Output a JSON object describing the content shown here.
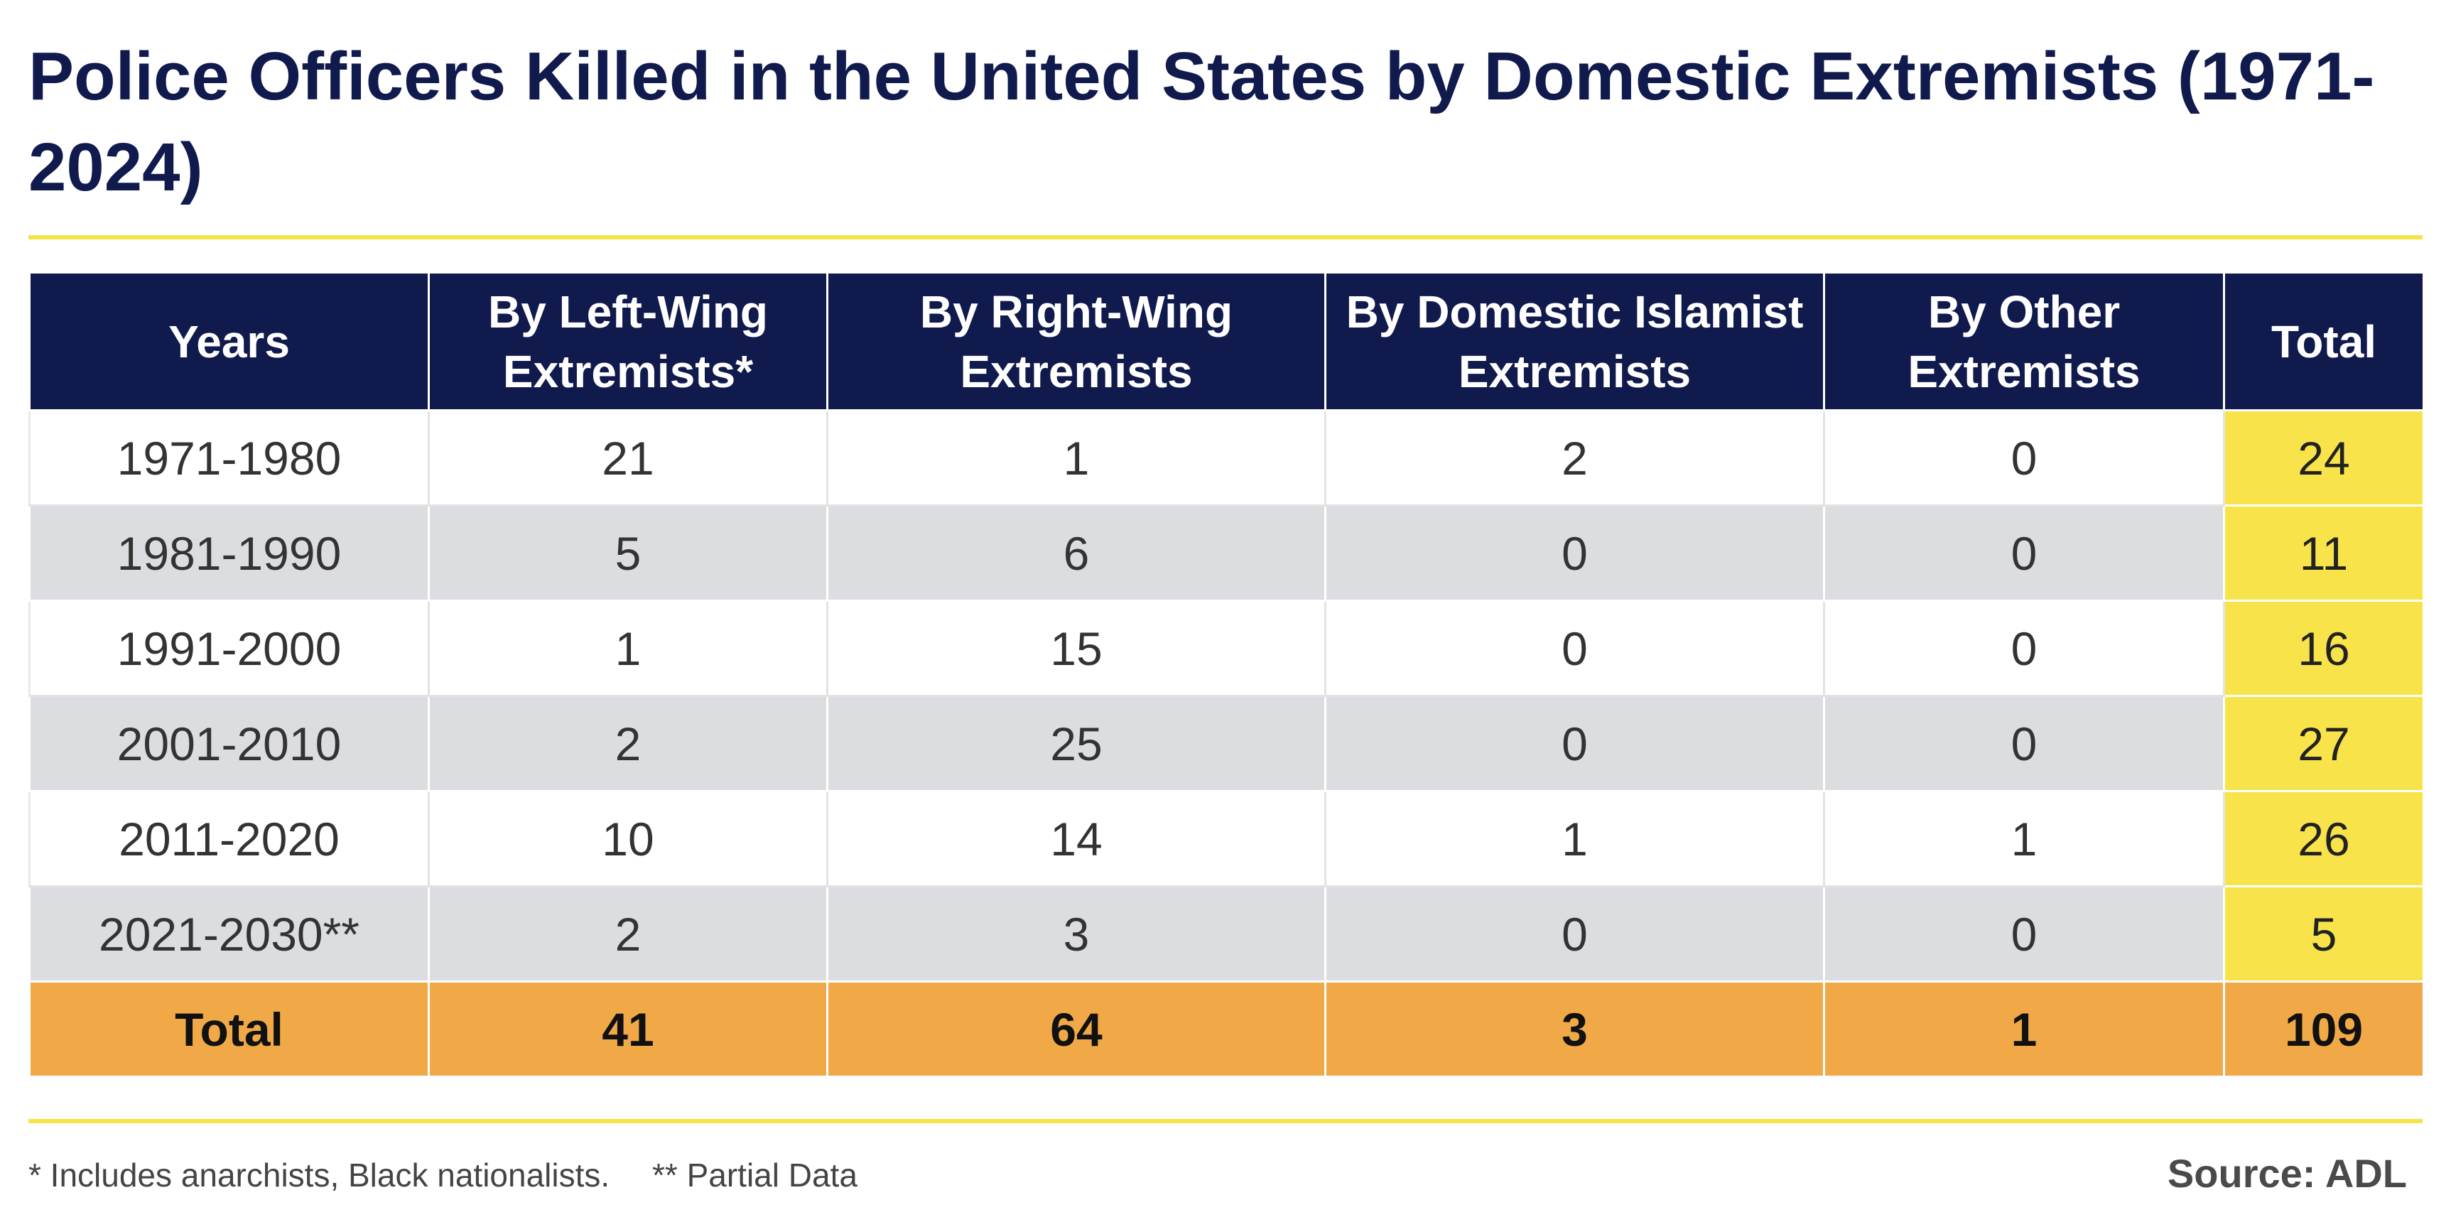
{
  "title": "Police Officers Killed in the United States by Domestic Extremists (1971-2024)",
  "colors": {
    "header_bg": "#101a4d",
    "accent_rule": "#f4e44a",
    "total_column": "#f8e34b",
    "total_row": "#f0a946",
    "stripe": "#dcdde0"
  },
  "chart_data": {
    "type": "table",
    "title": "Police Officers Killed in the United States by Domestic Extremists (1971-2024)",
    "columns": [
      "Years",
      "By Left-Wing Extremists*",
      "By Right-Wing Extremists",
      "By Domestic Islamist Extremists",
      "By Other Extremists",
      "Total"
    ],
    "rows": [
      [
        "1971-1980",
        "21",
        "1",
        "2",
        "0",
        "24"
      ],
      [
        "1981-1990",
        "5",
        "6",
        "0",
        "0",
        "11"
      ],
      [
        "1991-2000",
        "1",
        "15",
        "0",
        "0",
        "16"
      ],
      [
        "2001-2010",
        "2",
        "25",
        "0",
        "0",
        "27"
      ],
      [
        "2011-2020",
        "10",
        "14",
        "1",
        "1",
        "26"
      ],
      [
        "2021-2030**",
        "2",
        "3",
        "0",
        "0",
        "5"
      ]
    ],
    "totals": [
      "Total",
      "41",
      "64",
      "3",
      "1",
      "109"
    ]
  },
  "footnotes": [
    "* Includes anarchists, Black nationalists.",
    "** Partial Data"
  ],
  "source": "Source: ADL"
}
